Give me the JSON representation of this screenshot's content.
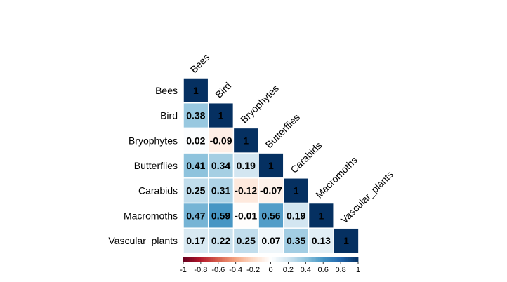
{
  "chart_data": {
    "type": "heatmap",
    "subtype": "correlation-matrix-lower-triangle",
    "variables": [
      "Bees",
      "Bird",
      "Bryophytes",
      "Butterflies",
      "Carabids",
      "Macromoths",
      "Vascular_plants"
    ],
    "matrix": [
      [
        1
      ],
      [
        0.38,
        1
      ],
      [
        0.02,
        -0.09,
        1
      ],
      [
        0.41,
        0.34,
        0.19,
        1
      ],
      [
        0.25,
        0.31,
        -0.12,
        -0.07,
        1
      ],
      [
        0.47,
        0.59,
        -0.01,
        0.56,
        0.19,
        1
      ],
      [
        0.17,
        0.22,
        0.25,
        0.07,
        0.35,
        0.13,
        1
      ]
    ],
    "cell_labels": [
      [
        "1"
      ],
      [
        "0.38",
        "1"
      ],
      [
        "0.02",
        "-0.09",
        "1"
      ],
      [
        "0.41",
        "0.34",
        "0.19",
        "1"
      ],
      [
        "0.25",
        "0.31",
        "-0.12",
        "-0.07",
        "1"
      ],
      [
        "0.47",
        "0.59",
        "-0.01",
        "0.56",
        "0.19",
        "1"
      ],
      [
        "0.17",
        "0.22",
        "0.25",
        "0.07",
        "0.35",
        "0.13",
        "1"
      ]
    ],
    "colorbar": {
      "range": [
        -1,
        1
      ],
      "ticks": [
        -1,
        -0.8,
        -0.6,
        -0.4,
        -0.2,
        0,
        0.2,
        0.4,
        0.6,
        0.8,
        1
      ],
      "tick_labels": [
        "-1",
        "-0.8",
        "-0.6",
        "-0.4",
        "-0.2",
        "0",
        "0.2",
        "0.4",
        "0.6",
        "0.8",
        "1"
      ],
      "placement": "bottom",
      "colors": [
        "#67001F",
        "#B2182B",
        "#D6604D",
        "#F4A582",
        "#FDDBC7",
        "#FFFFFF",
        "#D1E5F0",
        "#92C5DE",
        "#4393C3",
        "#2166AC",
        "#053061"
      ]
    },
    "title": "",
    "grid": false
  }
}
